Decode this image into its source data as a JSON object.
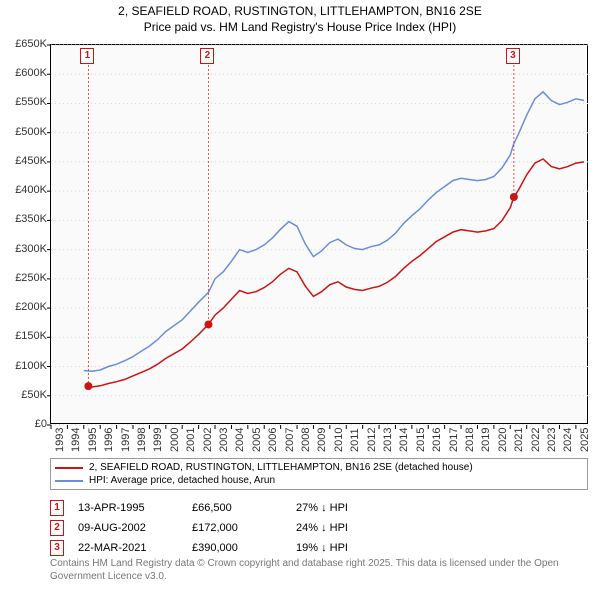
{
  "title_line1": "2, SEAFIELD ROAD, RUSTINGTON, LITTLEHAMPTON, BN16 2SE",
  "title_line2": "Price paid vs. HM Land Registry's House Price Index (HPI)",
  "title_fontsize": 12,
  "chart": {
    "type": "line",
    "background_color": "#fafafa",
    "grid_color": "#d8d8d8",
    "border_color": "#000000",
    "x_year_min": 1993,
    "x_year_max": 2025.8,
    "x_ticks": [
      1993,
      1994,
      1995,
      1996,
      1997,
      1998,
      1999,
      2000,
      2001,
      2002,
      2003,
      2004,
      2005,
      2006,
      2007,
      2008,
      2009,
      2010,
      2011,
      2012,
      2013,
      2014,
      2015,
      2016,
      2017,
      2018,
      2019,
      2020,
      2021,
      2022,
      2023,
      2024,
      2025
    ],
    "ylim": [
      0,
      650000
    ],
    "y_ticks": [
      0,
      50000,
      100000,
      150000,
      200000,
      250000,
      300000,
      350000,
      400000,
      450000,
      500000,
      550000,
      600000,
      650000
    ],
    "y_tick_labels": [
      "£0",
      "£50K",
      "£100K",
      "£150K",
      "£200K",
      "£250K",
      "£300K",
      "£350K",
      "£400K",
      "£450K",
      "£500K",
      "£550K",
      "£600K",
      "£650K"
    ],
    "tick_fontsize": 11,
    "series": [
      {
        "name": "hpi",
        "label": "HPI: Average price, detached house, Arun",
        "color": "#6a8fd8",
        "line_width": 1.5,
        "points": [
          [
            1995.0,
            93000
          ],
          [
            1995.5,
            92000
          ],
          [
            1996.0,
            94000
          ],
          [
            1996.5,
            100000
          ],
          [
            1997.0,
            104000
          ],
          [
            1997.5,
            110000
          ],
          [
            1998.0,
            117000
          ],
          [
            1998.5,
            126000
          ],
          [
            1999.0,
            135000
          ],
          [
            1999.5,
            146000
          ],
          [
            2000.0,
            160000
          ],
          [
            2000.5,
            170000
          ],
          [
            2001.0,
            180000
          ],
          [
            2001.5,
            195000
          ],
          [
            2002.0,
            210000
          ],
          [
            2002.6,
            227000
          ],
          [
            2003.0,
            250000
          ],
          [
            2003.5,
            262000
          ],
          [
            2004.0,
            280000
          ],
          [
            2004.5,
            300000
          ],
          [
            2005.0,
            295000
          ],
          [
            2005.5,
            300000
          ],
          [
            2006.0,
            308000
          ],
          [
            2006.5,
            320000
          ],
          [
            2007.0,
            335000
          ],
          [
            2007.5,
            348000
          ],
          [
            2008.0,
            340000
          ],
          [
            2008.5,
            310000
          ],
          [
            2009.0,
            288000
          ],
          [
            2009.5,
            298000
          ],
          [
            2010.0,
            312000
          ],
          [
            2010.5,
            318000
          ],
          [
            2011.0,
            308000
          ],
          [
            2011.5,
            302000
          ],
          [
            2012.0,
            300000
          ],
          [
            2012.5,
            305000
          ],
          [
            2013.0,
            308000
          ],
          [
            2013.5,
            316000
          ],
          [
            2014.0,
            328000
          ],
          [
            2014.5,
            345000
          ],
          [
            2015.0,
            358000
          ],
          [
            2015.5,
            370000
          ],
          [
            2016.0,
            385000
          ],
          [
            2016.5,
            398000
          ],
          [
            2017.0,
            408000
          ],
          [
            2017.5,
            418000
          ],
          [
            2018.0,
            422000
          ],
          [
            2018.5,
            420000
          ],
          [
            2019.0,
            418000
          ],
          [
            2019.5,
            420000
          ],
          [
            2020.0,
            425000
          ],
          [
            2020.5,
            440000
          ],
          [
            2021.0,
            462000
          ],
          [
            2021.2,
            480000
          ],
          [
            2021.5,
            498000
          ],
          [
            2022.0,
            530000
          ],
          [
            2022.5,
            558000
          ],
          [
            2023.0,
            570000
          ],
          [
            2023.5,
            555000
          ],
          [
            2024.0,
            548000
          ],
          [
            2024.5,
            552000
          ],
          [
            2025.0,
            558000
          ],
          [
            2025.5,
            555000
          ]
        ]
      },
      {
        "name": "price-paid",
        "label": "2, SEAFIELD ROAD, RUSTINGTON, LITTLEHAMPTON, BN16 2SE (detached house)",
        "color": "#cc1414",
        "line_width": 2,
        "points": [
          [
            1995.28,
            66500
          ],
          [
            1995.5,
            65000
          ],
          [
            1996.0,
            67000
          ],
          [
            1996.5,
            71000
          ],
          [
            1997.0,
            74000
          ],
          [
            1997.5,
            78000
          ],
          [
            1998.0,
            84000
          ],
          [
            1998.5,
            90000
          ],
          [
            1999.0,
            96000
          ],
          [
            1999.5,
            104000
          ],
          [
            2000.0,
            114000
          ],
          [
            2000.5,
            122000
          ],
          [
            2001.0,
            130000
          ],
          [
            2001.5,
            142000
          ],
          [
            2002.0,
            155000
          ],
          [
            2002.6,
            172000
          ],
          [
            2003.0,
            188000
          ],
          [
            2003.5,
            200000
          ],
          [
            2004.0,
            215000
          ],
          [
            2004.5,
            230000
          ],
          [
            2005.0,
            225000
          ],
          [
            2005.5,
            228000
          ],
          [
            2006.0,
            235000
          ],
          [
            2006.5,
            245000
          ],
          [
            2007.0,
            258000
          ],
          [
            2007.5,
            268000
          ],
          [
            2008.0,
            262000
          ],
          [
            2008.5,
            238000
          ],
          [
            2009.0,
            220000
          ],
          [
            2009.5,
            228000
          ],
          [
            2010.0,
            240000
          ],
          [
            2010.5,
            245000
          ],
          [
            2011.0,
            236000
          ],
          [
            2011.5,
            232000
          ],
          [
            2012.0,
            230000
          ],
          [
            2012.5,
            234000
          ],
          [
            2013.0,
            237000
          ],
          [
            2013.5,
            244000
          ],
          [
            2014.0,
            254000
          ],
          [
            2014.5,
            268000
          ],
          [
            2015.0,
            280000
          ],
          [
            2015.5,
            290000
          ],
          [
            2016.0,
            302000
          ],
          [
            2016.5,
            314000
          ],
          [
            2017.0,
            322000
          ],
          [
            2017.5,
            330000
          ],
          [
            2018.0,
            334000
          ],
          [
            2018.5,
            332000
          ],
          [
            2019.0,
            330000
          ],
          [
            2019.5,
            332000
          ],
          [
            2020.0,
            336000
          ],
          [
            2020.5,
            350000
          ],
          [
            2021.0,
            372000
          ],
          [
            2021.22,
            390000
          ],
          [
            2021.5,
            402000
          ],
          [
            2022.0,
            428000
          ],
          [
            2022.5,
            448000
          ],
          [
            2023.0,
            455000
          ],
          [
            2023.5,
            442000
          ],
          [
            2024.0,
            438000
          ],
          [
            2024.5,
            442000
          ],
          [
            2025.0,
            448000
          ],
          [
            2025.5,
            450000
          ]
        ]
      }
    ],
    "transaction_markers": [
      {
        "n": "1",
        "year": 1995.28,
        "value": 66500,
        "color": "#cc1414"
      },
      {
        "n": "2",
        "year": 2002.6,
        "value": 172000,
        "color": "#cc1414"
      },
      {
        "n": "3",
        "year": 2021.22,
        "value": 390000,
        "color": "#cc1414"
      }
    ]
  },
  "legend": {
    "border_color": "#999999",
    "fontsize": 10
  },
  "transactions": [
    {
      "n": "1",
      "date": "13-APR-1995",
      "price": "£66,500",
      "diff": "27% ↓ HPI",
      "color": "#cc1414"
    },
    {
      "n": "2",
      "date": "09-AUG-2002",
      "price": "£172,000",
      "diff": "24% ↓ HPI",
      "color": "#cc1414"
    },
    {
      "n": "3",
      "date": "22-MAR-2021",
      "price": "£390,000",
      "diff": "19% ↓ HPI",
      "color": "#cc1414"
    }
  ],
  "attribution": "Contains HM Land Registry data © Crown copyright and database right 2025. This data is licensed under the Open Government Licence v3.0."
}
